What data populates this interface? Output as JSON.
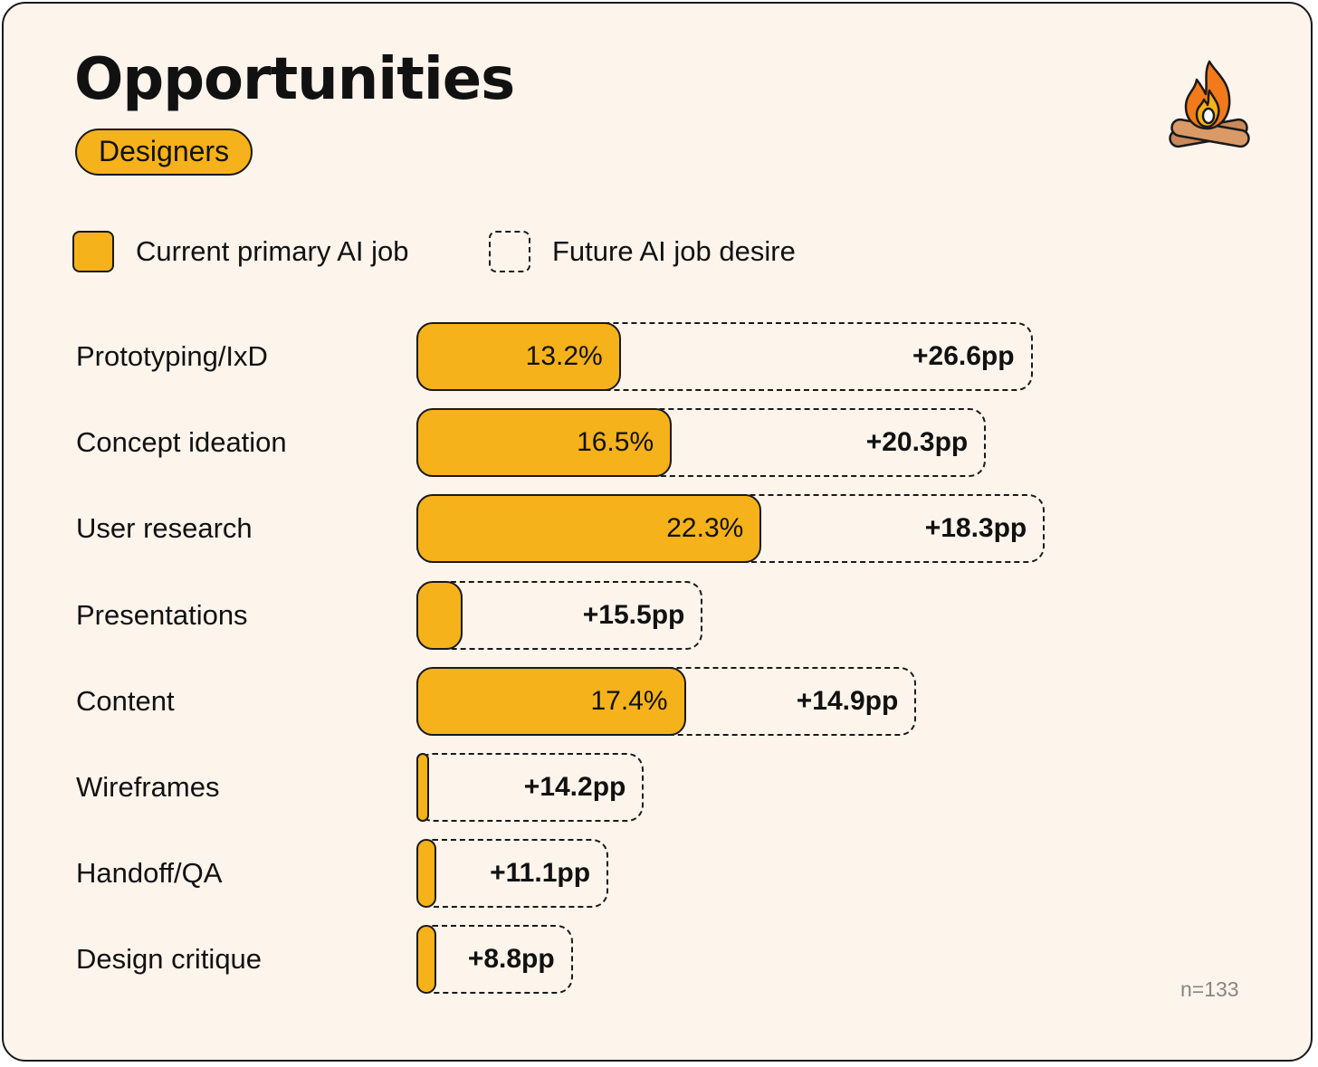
{
  "title": "Opportunities",
  "badge": "Designers",
  "sample_size": "n=133",
  "colors": {
    "background": "#fdf4ec",
    "bar_fill": "#f6b21a",
    "outline": "#1a1a1a"
  },
  "icon": "campfire-icon",
  "legend": [
    {
      "style": "solid",
      "label": "Current primary AI job"
    },
    {
      "style": "dashed",
      "label": "Future AI job desire"
    }
  ],
  "chart_data": {
    "type": "bar",
    "orientation": "horizontal",
    "stacked": true,
    "categories": [
      "Prototyping/IxD",
      "Concept ideation",
      "User research",
      "Presentations",
      "Content",
      "Wireframes",
      "Handoff/QA",
      "Design critique"
    ],
    "series": [
      {
        "name": "Current primary AI job",
        "values": [
          13.2,
          16.5,
          22.3,
          3.0,
          17.4,
          0.5,
          1.3,
          1.3
        ],
        "labels": [
          "13.2%",
          "16.5%",
          "22.3%",
          "",
          "17.4%",
          "",
          "",
          ""
        ]
      },
      {
        "name": "Future AI job desire",
        "values": [
          26.6,
          20.3,
          18.3,
          15.5,
          14.9,
          14.2,
          11.1,
          8.8
        ],
        "labels": [
          "+26.6pp",
          "+20.3pp",
          "+18.3pp",
          "+15.5pp",
          "+14.9pp",
          "+14.2pp",
          "+11.1pp",
          "+8.8pp"
        ]
      }
    ],
    "legend": "top-left",
    "grid": false
  }
}
